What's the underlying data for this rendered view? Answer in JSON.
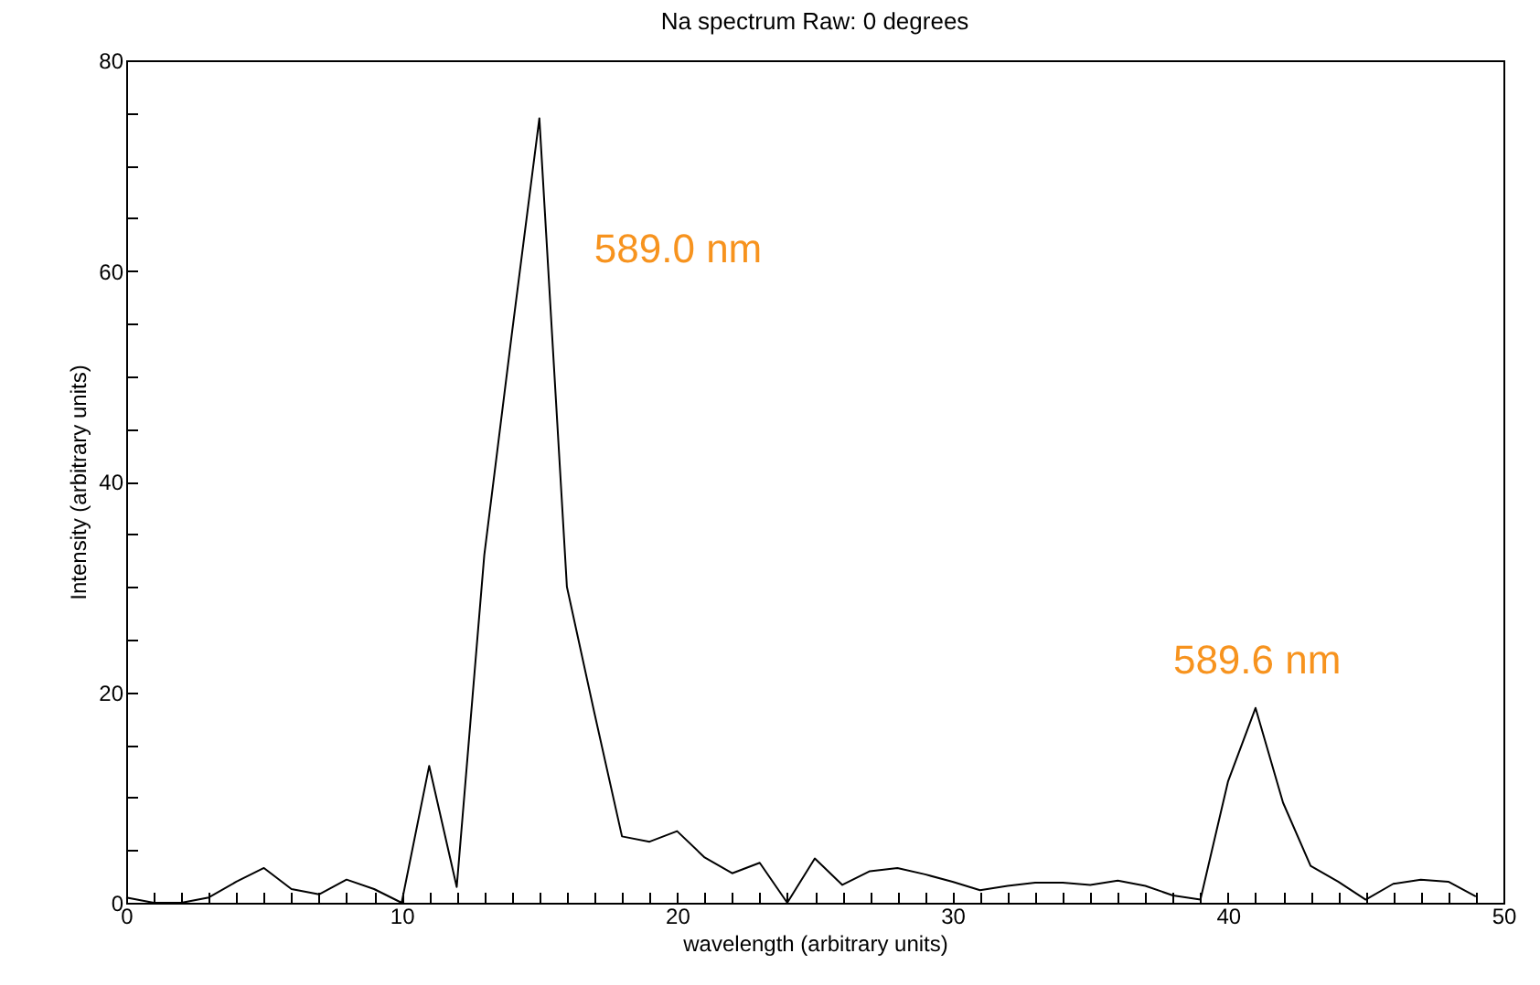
{
  "chart_data": {
    "type": "line",
    "title": "Na spectrum Raw: 0 degrees",
    "xlabel": "wavelength (arbitrary units)",
    "ylabel": "Intensity (arbitrary units)",
    "x": [
      0,
      1,
      2,
      3,
      4,
      5,
      6,
      7,
      8,
      9,
      10,
      11,
      12,
      13,
      14,
      15,
      16,
      17,
      18,
      19,
      20,
      21,
      22,
      23,
      24,
      25,
      26,
      27,
      28,
      29,
      30,
      31,
      32,
      33,
      34,
      35,
      36,
      37,
      38,
      39,
      40,
      41,
      42,
      43,
      44,
      45,
      46,
      47,
      48,
      49
    ],
    "series": [
      {
        "color": "#000000",
        "values": [
          0.5,
          0,
          0,
          0.5,
          2,
          3.3,
          1.3,
          0.8,
          2.2,
          1.3,
          0,
          13,
          1.5,
          33,
          54,
          74.5,
          30,
          18,
          6.3,
          5.8,
          6.8,
          4.3,
          2.8,
          3.8,
          0,
          4.2,
          1.7,
          3,
          3.3,
          2.7,
          2,
          1.2,
          1.6,
          1.9,
          1.9,
          1.7,
          2.1,
          1.6,
          0.7,
          0.3,
          11.5,
          18.5,
          9.5,
          3.5,
          2,
          0.3,
          1.8,
          2.2,
          2,
          0.6
        ]
      }
    ],
    "xlim": [
      0,
      50
    ],
    "ylim": [
      0,
      80
    ],
    "xticks": [
      0,
      {
        "value": 1,
        "label": null
      },
      {
        "value": 2,
        "label": null
      },
      {
        "value": 3,
        "label": null
      },
      {
        "value": 4,
        "label": null
      },
      {
        "value": 5,
        "label": null
      },
      {
        "value": 6,
        "label": null
      },
      {
        "value": 7,
        "label": null
      },
      {
        "value": 8,
        "label": null
      },
      {
        "value": 9,
        "label": null
      },
      10,
      {
        "value": 11,
        "label": null
      },
      {
        "value": 12,
        "label": null
      },
      {
        "value": 13,
        "label": null
      },
      {
        "value": 14,
        "label": null
      },
      {
        "value": 15,
        "label": null
      },
      {
        "value": 16,
        "label": null
      },
      {
        "value": 17,
        "label": null
      },
      {
        "value": 18,
        "label": null
      },
      {
        "value": 19,
        "label": null
      },
      20,
      {
        "value": 21,
        "label": null
      },
      {
        "value": 22,
        "label": null
      },
      {
        "value": 23,
        "label": null
      },
      {
        "value": 24,
        "label": null
      },
      {
        "value": 25,
        "label": null
      },
      {
        "value": 26,
        "label": null
      },
      {
        "value": 27,
        "label": null
      },
      {
        "value": 28,
        "label": null
      },
      {
        "value": 29,
        "label": null
      },
      30,
      {
        "value": 31,
        "label": null
      },
      {
        "value": 32,
        "label": null
      },
      {
        "value": 33,
        "label": null
      },
      {
        "value": 34,
        "label": null
      },
      {
        "value": 35,
        "label": null
      },
      {
        "value": 36,
        "label": null
      },
      {
        "value": 37,
        "label": null
      },
      {
        "value": 38,
        "label": null
      },
      {
        "value": 39,
        "label": null
      },
      40,
      {
        "value": 41,
        "label": null
      },
      {
        "value": 42,
        "label": null
      },
      {
        "value": 43,
        "label": null
      },
      {
        "value": 44,
        "label": null
      },
      {
        "value": 45,
        "label": null
      },
      {
        "value": 46,
        "label": null
      },
      {
        "value": 47,
        "label": null
      },
      {
        "value": 48,
        "label": null
      },
      {
        "value": 49,
        "label": null
      },
      50
    ],
    "yticks": [
      0,
      {
        "value": 5,
        "label": null
      },
      {
        "value": 10,
        "label": null
      },
      {
        "value": 15,
        "label": null
      },
      20,
      {
        "value": 25,
        "label": null
      },
      {
        "value": 30,
        "label": null
      },
      {
        "value": 35,
        "label": null
      },
      40,
      {
        "value": 45,
        "label": null
      },
      {
        "value": 50,
        "label": null
      },
      {
        "value": 55,
        "label": null
      },
      60,
      {
        "value": 65,
        "label": null
      },
      {
        "value": 70,
        "label": null
      },
      {
        "value": 75,
        "label": null
      },
      80
    ],
    "annotations": [
      {
        "text": "589.0 nm",
        "x": 15,
        "y": 74.5
      },
      {
        "text": "589.6 nm",
        "x": 41,
        "y": 18.5
      }
    ],
    "marker": "none",
    "line_style": "solid",
    "grid": false
  }
}
